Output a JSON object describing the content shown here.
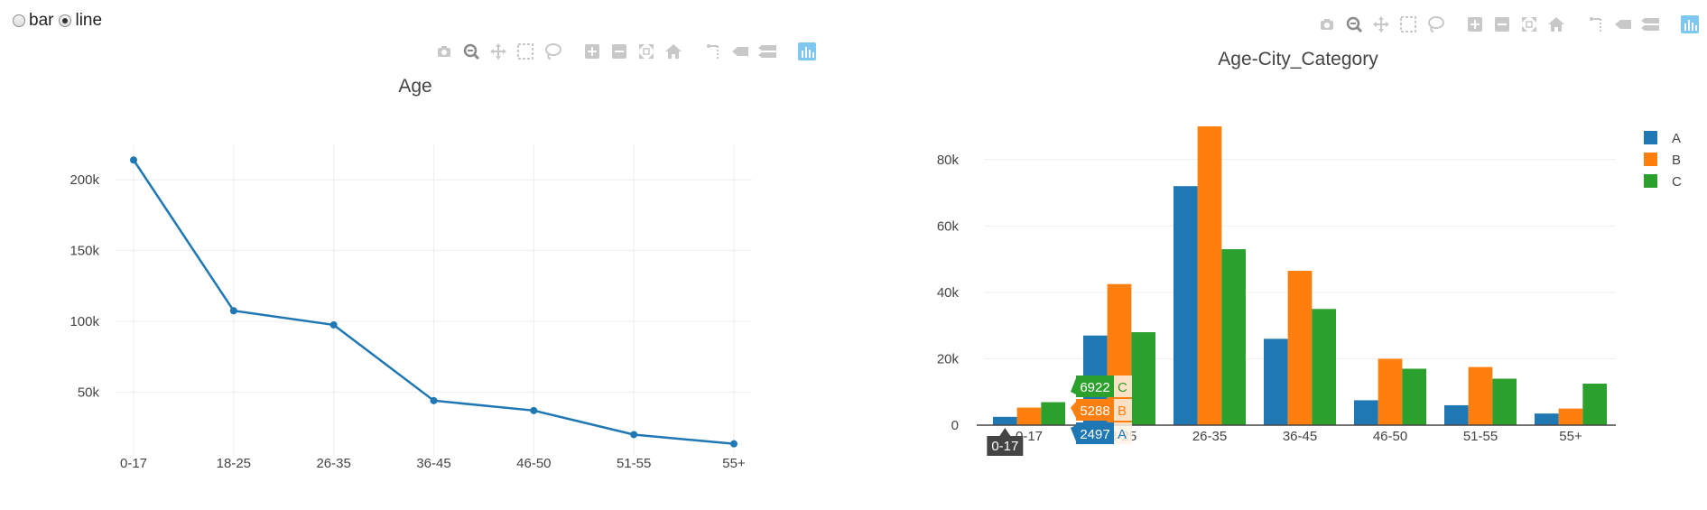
{
  "controls": {
    "options": [
      {
        "label": "bar",
        "checked": false
      },
      {
        "label": "line",
        "checked": true
      }
    ]
  },
  "modebar_icons": [
    "camera-icon",
    "zoom-icon",
    "pan-icon",
    "box-select-icon",
    "lasso-select-icon",
    "zoom-in-icon",
    "zoom-out-icon",
    "autoscale-icon",
    "reset-axes-icon",
    "spike-lines-icon",
    "hover-closest-icon",
    "hover-compare-icon",
    "plotly-logo-icon"
  ],
  "colors": {
    "A": "#1f77b4",
    "B": "#ff7f0e",
    "C": "#2ca02c",
    "grid": "#eeeeee",
    "hover_label_bg": "#444444"
  },
  "chart_data": [
    {
      "type": "line",
      "title": "Age",
      "categories": [
        "0-17",
        "18-25",
        "26-35",
        "36-45",
        "46-50",
        "51-55",
        "55+"
      ],
      "values": [
        214000,
        107500,
        97500,
        44000,
        37000,
        20000,
        13500
      ],
      "ytick_values": [
        50000,
        100000,
        150000,
        200000
      ],
      "ytick_labels": [
        "50k",
        "100k",
        "150k",
        "200k"
      ],
      "ylim": [
        5000,
        225000
      ],
      "grid": true,
      "color": "#1f77b4"
    },
    {
      "type": "bar",
      "title": "Age-City_Category",
      "categories": [
        "0-17",
        "18-25",
        "26-35",
        "36-45",
        "46-50",
        "51-55",
        "55+"
      ],
      "series": [
        {
          "name": "A",
          "values": [
            2497,
            27000,
            72000,
            26000,
            7500,
            6000,
            3500
          ]
        },
        {
          "name": "B",
          "values": [
            5288,
            42500,
            90000,
            46500,
            20000,
            17500,
            5000
          ]
        },
        {
          "name": "C",
          "values": [
            6922,
            28000,
            53000,
            35000,
            17000,
            14000,
            12500
          ]
        }
      ],
      "ytick_values": [
        0,
        20000,
        40000,
        60000,
        80000
      ],
      "ytick_labels": [
        "0",
        "20k",
        "40k",
        "60k",
        "80k"
      ],
      "ylim": [
        0,
        90000
      ],
      "grid": true,
      "legend": {
        "position": "top-right",
        "entries": [
          "A",
          "B",
          "C"
        ]
      },
      "hover": {
        "category": "0-17",
        "labels": [
          {
            "series": "C",
            "value": "6922"
          },
          {
            "series": "B",
            "value": "5288"
          },
          {
            "series": "A",
            "value": "2497"
          }
        ]
      }
    }
  ]
}
